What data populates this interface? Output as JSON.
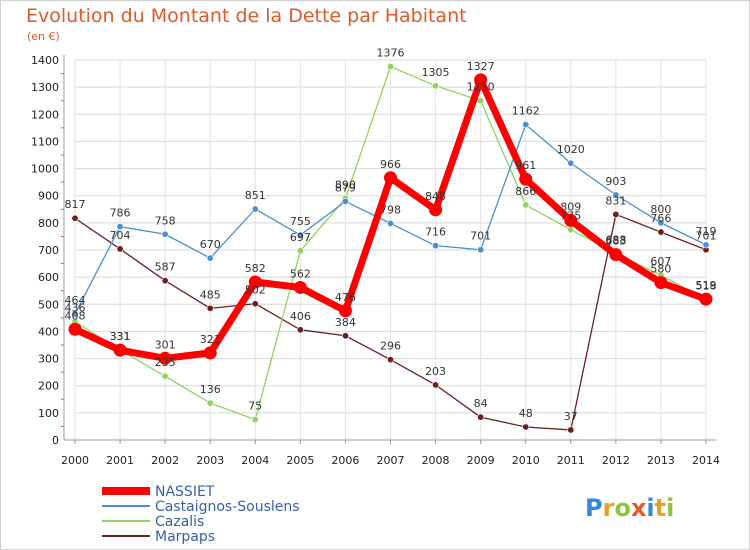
{
  "chart_data": {
    "type": "line",
    "title": "Evolution du Montant de la Dette par Habitant",
    "subtitle": "(en €)",
    "x": [
      "2000",
      "2001",
      "2002",
      "2003",
      "2004",
      "2005",
      "2006",
      "2007",
      "2008",
      "2009",
      "2010",
      "2011",
      "2012",
      "2013",
      "2014"
    ],
    "ylim": [
      0,
      1400
    ],
    "yticks": [
      0,
      100,
      200,
      300,
      400,
      500,
      600,
      700,
      800,
      900,
      1000,
      1100,
      1200,
      1300,
      1400
    ],
    "grid": true,
    "legend_position": "bottom-left",
    "series": [
      {
        "name": "NASSIET",
        "color": "#ff0000",
        "values": [
          408,
          331,
          301,
          321,
          582,
          562,
          476,
          966,
          848,
          1327,
          961,
          809,
          683,
          580,
          519
        ]
      },
      {
        "name": "Castaignos-Souslens",
        "color": "#4a8fd1",
        "values": [
          464,
          786,
          758,
          670,
          851,
          755,
          879,
          798,
          716,
          701,
          1162,
          1020,
          903,
          800,
          719
        ]
      },
      {
        "name": "Cazalis",
        "color": "#8ed461",
        "values": [
          436,
          331,
          235,
          136,
          75,
          697,
          890,
          1376,
          1305,
          1250,
          866,
          775,
          688,
          607,
          518
        ]
      },
      {
        "name": "Marpaps",
        "color": "#6b1f1f",
        "values": [
          817,
          704,
          587,
          485,
          502,
          406,
          384,
          296,
          203,
          84,
          48,
          37,
          831,
          766,
          701
        ]
      }
    ]
  },
  "logo": {
    "text": "Proxiti"
  }
}
